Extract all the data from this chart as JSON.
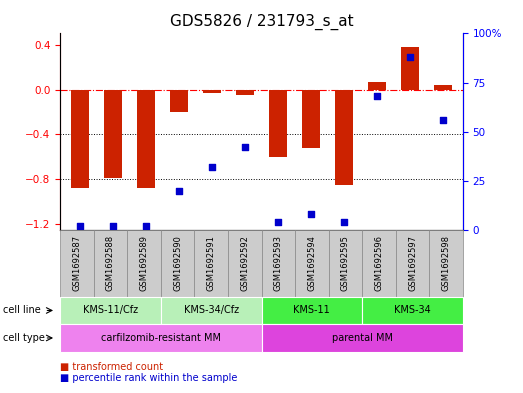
{
  "title": "GDS5826 / 231793_s_at",
  "samples": [
    "GSM1692587",
    "GSM1692588",
    "GSM1692589",
    "GSM1692590",
    "GSM1692591",
    "GSM1692592",
    "GSM1692593",
    "GSM1692594",
    "GSM1692595",
    "GSM1692596",
    "GSM1692597",
    "GSM1692598"
  ],
  "transformed_count": [
    -0.88,
    -0.79,
    -0.88,
    -0.2,
    -0.03,
    -0.05,
    -0.6,
    -0.52,
    -0.85,
    0.07,
    0.38,
    0.04
  ],
  "percentile_rank": [
    2,
    2,
    2,
    20,
    32,
    42,
    4,
    8,
    4,
    68,
    88,
    56
  ],
  "ylim_left": [
    -1.25,
    0.5
  ],
  "ylim_right": [
    0,
    100
  ],
  "yticks_left": [
    0.4,
    0.0,
    -0.4,
    -0.8,
    -1.2
  ],
  "yticks_right": [
    100,
    75,
    50,
    25,
    0
  ],
  "hline_y": 0.0,
  "dotted_lines": [
    -0.4,
    -0.8
  ],
  "cell_line_groups": [
    {
      "label": "KMS-11/Cfz",
      "start": 0,
      "end": 3,
      "color": "#b8f0b8"
    },
    {
      "label": "KMS-34/Cfz",
      "start": 3,
      "end": 6,
      "color": "#b8f0b8"
    },
    {
      "label": "KMS-11",
      "start": 6,
      "end": 9,
      "color": "#44ee44"
    },
    {
      "label": "KMS-34",
      "start": 9,
      "end": 12,
      "color": "#44ee44"
    }
  ],
  "cell_type_groups": [
    {
      "label": "carfilzomib-resistant MM",
      "start": 0,
      "end": 6,
      "color": "#ee82ee"
    },
    {
      "label": "parental MM",
      "start": 6,
      "end": 12,
      "color": "#dd44dd"
    }
  ],
  "bar_color": "#cc2200",
  "dot_color": "#0000cc",
  "sample_box_color": "#cccccc",
  "sample_box_edge": "#888888",
  "plot_bg": "#ffffff",
  "title_fontsize": 11,
  "tick_fontsize": 7.5,
  "label_fontsize": 7,
  "sample_fontsize": 6
}
